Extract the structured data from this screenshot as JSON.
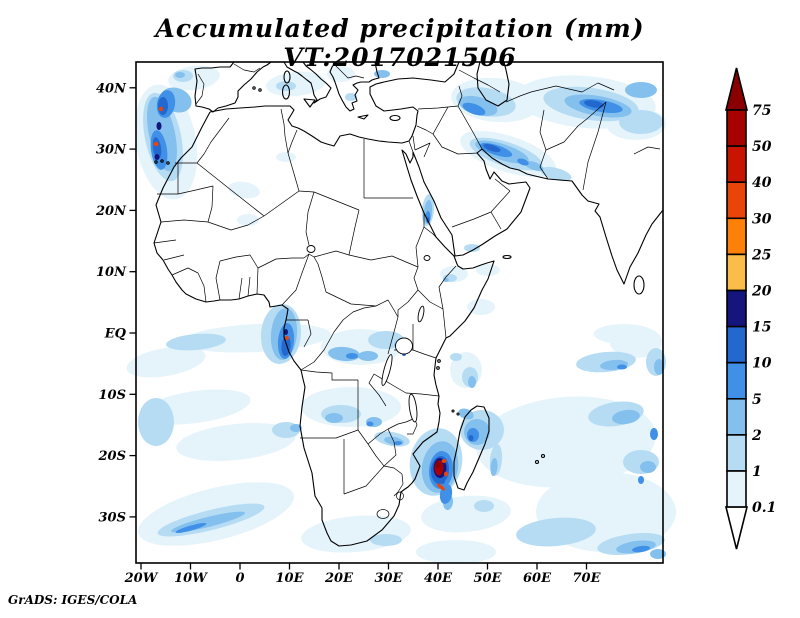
{
  "title": "Accumulated precipitation (mm) VT:2017021506",
  "footer": "GrADS: IGES/COLA",
  "axes": {
    "lat_ticks": [
      {
        "label": "40N",
        "deg": 40
      },
      {
        "label": "30N",
        "deg": 30
      },
      {
        "label": "20N",
        "deg": 20
      },
      {
        "label": "10N",
        "deg": 10
      },
      {
        "label": "EQ",
        "deg": 0
      },
      {
        "label": "10S",
        "deg": -10
      },
      {
        "label": "20S",
        "deg": -20
      },
      {
        "label": "30S",
        "deg": -30
      }
    ],
    "lon_ticks": [
      {
        "label": "20W",
        "deg": -20
      },
      {
        "label": "10W",
        "deg": -10
      },
      {
        "label": "0",
        "deg": 0
      },
      {
        "label": "10E",
        "deg": 10
      },
      {
        "label": "20E",
        "deg": 20
      },
      {
        "label": "30E",
        "deg": 30
      },
      {
        "label": "40E",
        "deg": 40
      },
      {
        "label": "50E",
        "deg": 50
      },
      {
        "label": "60E",
        "deg": 60
      },
      {
        "label": "70E",
        "deg": 70
      }
    ]
  },
  "colorbar": {
    "labels": [
      "75",
      "50",
      "40",
      "30",
      "25",
      "20",
      "15",
      "10",
      "5",
      "2",
      "1",
      "0.1"
    ],
    "above_color": "#8a0000",
    "below_color": "#ffffff"
  },
  "chart_data": {
    "type": "heatmap",
    "title": "Accumulated precipitation (mm) VT:2017021506",
    "units": "mm",
    "valid_time": "2017021506",
    "xlabel": "longitude",
    "ylabel": "latitude",
    "domain": {
      "lon_min": -21,
      "lon_max": 85.5,
      "lat_min": -37.5,
      "lat_max": 44.2
    },
    "x_tick_labels": [
      "20W",
      "10W",
      "0",
      "10E",
      "20E",
      "30E",
      "40E",
      "50E",
      "60E",
      "70E"
    ],
    "y_tick_labels": [
      "40N",
      "30N",
      "20N",
      "10N",
      "EQ",
      "10S",
      "20S",
      "30S"
    ],
    "levels": [
      0.1,
      1,
      2,
      5,
      10,
      15,
      20,
      25,
      30,
      40,
      50,
      75
    ],
    "palette": {
      "0.1": "#e5f4fb",
      "1": "#b6dcf4",
      "2": "#84c0ee",
      "5": "#3f90e6",
      "10": "#2268cf",
      "15": "#15157e",
      "20": "#fbbd4a",
      "25": "#fd8108",
      "30": "#ea4509",
      "40": "#c81400",
      "50": "#a80000",
      "75": "#8a0000"
    },
    "features": [
      "Blue rain cluster in Atlantic west of Morocco/Canary Islands with small >30mm cores",
      "Light rain over Iberia and western Mediterranean",
      "Rain band across Turkey, Caucasus, Caspian, Iran and Afghanistan",
      "Rain streak along the Persian Gulf coast of Iran",
      "Small streak over the central Red Sea",
      "Rain blob offshore Gabon/Equatorial Guinea with >30mm speck",
      "Scattered rain over the Congo basin, Zambia and Zimbabwe",
      "Intense storm (>75mm core) on the southern Mozambique coast near 22S 36E",
      "Rain arc northwest of Madagascar and along its east coast",
      "Widespread light rain over the southwest Indian Ocean",
      "Thin rain arc in the South Atlantic southwest of South Africa",
      "Rain streak at the bottom-right corner of the domain"
    ],
    "shading_blobs": [
      [
        "0.1",
        30,
        80,
        30,
        58,
        -10
      ],
      [
        "1",
        27,
        75,
        18,
        45,
        -12
      ],
      [
        "2",
        26,
        72,
        13,
        38,
        -12
      ],
      [
        "2",
        40,
        38,
        16,
        12,
        20
      ],
      [
        "5",
        30,
        42,
        9,
        14,
        10
      ],
      [
        "5",
        23,
        88,
        8,
        20,
        -8
      ],
      [
        "10",
        27,
        44,
        5,
        9,
        0
      ],
      [
        "10",
        21,
        86,
        4,
        11,
        -8
      ],
      [
        "15",
        23,
        64,
        2.5,
        4,
        0
      ],
      [
        "15",
        21,
        95,
        2.5,
        3,
        0
      ],
      [
        "30",
        25,
        47,
        2.2,
        2.2,
        0
      ],
      [
        "30",
        20,
        82,
        2.5,
        2.2,
        0
      ],
      [
        "0.1",
        58,
        16,
        26,
        12,
        -8
      ],
      [
        "1",
        47,
        14,
        10,
        6,
        0
      ],
      [
        "2",
        44,
        13,
        5,
        3,
        0
      ],
      [
        "0.1",
        160,
        22,
        30,
        12,
        -5
      ],
      [
        "1",
        150,
        24,
        10,
        5,
        0
      ],
      [
        "0.1",
        205,
        12,
        14,
        8,
        0
      ],
      [
        "1",
        215,
        35,
        6,
        4,
        0
      ],
      [
        "2",
        246,
        12,
        8,
        4,
        0
      ],
      [
        "0.1",
        360,
        38,
        45,
        22,
        5
      ],
      [
        "1",
        350,
        40,
        30,
        14,
        10
      ],
      [
        "2",
        342,
        44,
        20,
        9,
        15
      ],
      [
        "5",
        338,
        47,
        12,
        5,
        20
      ],
      [
        "0.1",
        450,
        40,
        70,
        26,
        5
      ],
      [
        "1",
        455,
        42,
        48,
        16,
        8
      ],
      [
        "2",
        462,
        44,
        34,
        10,
        10
      ],
      [
        "5",
        465,
        44,
        22,
        6,
        10
      ],
      [
        "10",
        458,
        42,
        10,
        3.5,
        10
      ],
      [
        "2",
        505,
        28,
        16,
        8,
        0
      ],
      [
        "1",
        505,
        60,
        22,
        12,
        0
      ],
      [
        "0.1",
        500,
        62,
        30,
        16,
        0
      ],
      [
        "0.1",
        372,
        92,
        50,
        18,
        18
      ],
      [
        "1",
        370,
        92,
        38,
        12,
        18
      ],
      [
        "2",
        366,
        90,
        28,
        8,
        18
      ],
      [
        "5",
        360,
        88,
        17,
        5,
        18
      ],
      [
        "10",
        356,
        86,
        9,
        3,
        18
      ],
      [
        "5",
        387,
        100,
        6,
        3,
        20
      ],
      [
        "2",
        398,
        104,
        10,
        4,
        20
      ],
      [
        "1",
        420,
        112,
        16,
        6,
        15
      ],
      [
        "1",
        292,
        148,
        6,
        16,
        5
      ],
      [
        "2",
        292,
        150,
        4,
        12,
        5
      ],
      [
        "5",
        292,
        155,
        2.5,
        6,
        0
      ],
      [
        "10",
        292,
        158,
        1.5,
        3,
        0
      ],
      [
        "0.1",
        318,
        212,
        14,
        8,
        0
      ],
      [
        "1",
        314,
        216,
        7,
        4,
        0
      ],
      [
        "2",
        310,
        218,
        3,
        2,
        0
      ],
      [
        "1",
        336,
        186,
        8,
        4,
        0
      ],
      [
        "0.1",
        120,
        276,
        75,
        14,
        -3
      ],
      [
        "1",
        145,
        272,
        20,
        30,
        5
      ],
      [
        "2",
        148,
        272,
        13,
        26,
        5
      ],
      [
        "5",
        150,
        279,
        8,
        18,
        5
      ],
      [
        "10",
        150,
        284,
        4.5,
        10,
        5
      ],
      [
        "15",
        150,
        270,
        2,
        3,
        0
      ],
      [
        "30",
        151,
        276,
        2,
        2,
        0
      ],
      [
        "1",
        60,
        280,
        30,
        8,
        -5
      ],
      [
        "0.1",
        30,
        300,
        40,
        14,
        -10
      ],
      [
        "0.1",
        225,
        285,
        40,
        18,
        0
      ],
      [
        "2",
        208,
        292,
        16,
        7,
        5
      ],
      [
        "2",
        232,
        294,
        10,
        5,
        0
      ],
      [
        "5",
        216,
        294,
        6,
        3,
        0
      ],
      [
        "1",
        250,
        278,
        18,
        9,
        0
      ],
      [
        "2",
        262,
        283,
        4,
        3,
        0
      ],
      [
        "10",
        268,
        292,
        2,
        2,
        0
      ],
      [
        "0.1",
        60,
        345,
        55,
        16,
        -8
      ],
      [
        "1",
        20,
        360,
        18,
        24,
        0
      ],
      [
        "0.1",
        100,
        380,
        60,
        18,
        -6
      ],
      [
        "1",
        150,
        368,
        14,
        8,
        0
      ],
      [
        "2",
        160,
        366,
        6,
        4,
        0
      ],
      [
        "0.1",
        215,
        345,
        50,
        20,
        0
      ],
      [
        "1",
        205,
        352,
        20,
        9,
        0
      ],
      [
        "2",
        198,
        356,
        9,
        5,
        0
      ],
      [
        "2",
        238,
        360,
        8,
        5,
        0
      ],
      [
        "5",
        234,
        362,
        3.5,
        2.5,
        0
      ],
      [
        "1",
        256,
        377,
        18,
        7,
        10
      ],
      [
        "2",
        258,
        379,
        10,
        4,
        10
      ],
      [
        "5",
        262,
        381,
        4,
        2,
        0
      ],
      [
        "1",
        300,
        400,
        26,
        34,
        10
      ],
      [
        "2",
        304,
        405,
        18,
        26,
        10
      ],
      [
        "5",
        305,
        408,
        12,
        19,
        5
      ],
      [
        "10",
        304,
        408,
        9,
        14,
        5
      ],
      [
        "15",
        304,
        406,
        6.5,
        10,
        0
      ],
      [
        "50",
        303,
        406,
        4.5,
        7.5,
        0
      ],
      [
        "75",
        302,
        403,
        2.5,
        3.5,
        0
      ],
      [
        "30",
        308,
        399,
        2.5,
        2,
        0
      ],
      [
        "30",
        310,
        412,
        2,
        2.5,
        0
      ],
      [
        "30",
        305,
        425,
        5,
        1.8,
        40
      ],
      [
        "5",
        310,
        432,
        6,
        10,
        10
      ],
      [
        "2",
        312,
        440,
        5,
        8,
        5
      ],
      [
        "10",
        307,
        419,
        2,
        3,
        0
      ],
      [
        "1",
        346,
        368,
        22,
        20,
        0
      ],
      [
        "2",
        341,
        370,
        13,
        13,
        0
      ],
      [
        "5",
        337,
        373,
        6,
        7,
        0
      ],
      [
        "10",
        335,
        376,
        2.5,
        3,
        0
      ],
      [
        "2",
        330,
        352,
        8,
        5,
        20
      ],
      [
        "1",
        360,
        398,
        6,
        16,
        5
      ],
      [
        "2",
        358,
        405,
        3.5,
        9,
        5
      ],
      [
        "0.1",
        430,
        380,
        90,
        45,
        -5
      ],
      [
        "0.1",
        470,
        450,
        70,
        40,
        0
      ],
      [
        "1",
        480,
        352,
        28,
        12,
        -8
      ],
      [
        "2",
        490,
        355,
        14,
        7,
        -8
      ],
      [
        "1",
        505,
        400,
        18,
        12,
        0
      ],
      [
        "2",
        512,
        405,
        8,
        6,
        0
      ],
      [
        "5",
        518,
        372,
        4,
        6,
        0
      ],
      [
        "5",
        505,
        418,
        3,
        4,
        0
      ],
      [
        "1",
        420,
        470,
        40,
        14,
        -5
      ],
      [
        "0.1",
        330,
        452,
        45,
        18,
        -5
      ],
      [
        "1",
        348,
        444,
        10,
        6,
        0
      ],
      [
        "0.1",
        80,
        452,
        80,
        26,
        -14
      ],
      [
        "1",
        75,
        458,
        55,
        10,
        -14
      ],
      [
        "2",
        72,
        460,
        38,
        5,
        -14
      ],
      [
        "5",
        55,
        466,
        16,
        2.5,
        -16
      ],
      [
        "0.1",
        220,
        472,
        55,
        18,
        -5
      ],
      [
        "1",
        250,
        478,
        16,
        6,
        0
      ],
      [
        "0.1",
        320,
        490,
        40,
        12,
        0
      ],
      [
        "1",
        495,
        482,
        34,
        10,
        -8
      ],
      [
        "2",
        500,
        485,
        20,
        6,
        -8
      ],
      [
        "5",
        505,
        487,
        9,
        3,
        -8
      ],
      [
        "2",
        522,
        492,
        8,
        5,
        0
      ],
      [
        "0.1",
        330,
        308,
        16,
        18,
        0
      ],
      [
        "1",
        334,
        315,
        8,
        10,
        0
      ],
      [
        "2",
        336,
        320,
        4,
        6,
        0
      ],
      [
        "1",
        320,
        295,
        6,
        4,
        0
      ],
      [
        "0.1",
        108,
        128,
        16,
        8,
        10
      ],
      [
        "0.1",
        112,
        158,
        11,
        6,
        0
      ],
      [
        "0.1",
        150,
        95,
        10,
        5,
        0
      ],
      [
        "0.1",
        352,
        208,
        12,
        6,
        0
      ],
      [
        "0.1",
        345,
        245,
        14,
        8,
        0
      ],
      [
        "1",
        520,
        300,
        10,
        14,
        0
      ],
      [
        "2",
        523,
        305,
        5,
        8,
        0
      ],
      [
        "0.1",
        500,
        280,
        26,
        16,
        0
      ],
      [
        "1",
        470,
        300,
        30,
        10,
        -5
      ],
      [
        "2",
        478,
        303,
        14,
        5,
        -5
      ],
      [
        "5",
        486,
        305,
        5,
        2.5,
        0
      ],
      [
        "0.1",
        488,
        272,
        30,
        10,
        0
      ]
    ]
  }
}
